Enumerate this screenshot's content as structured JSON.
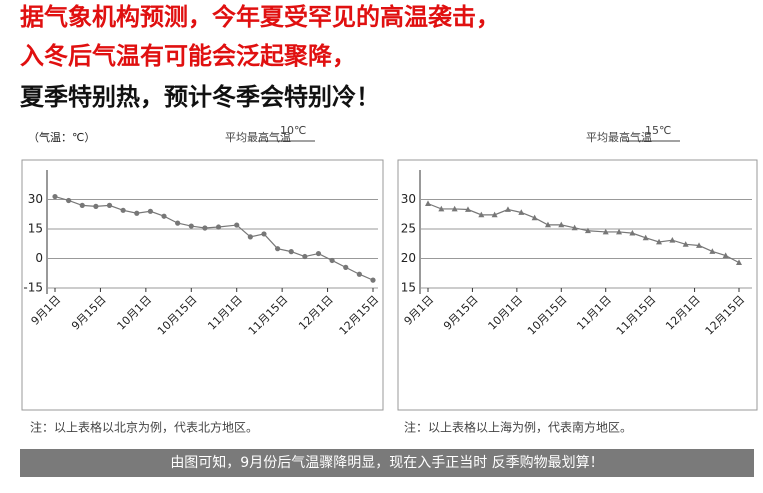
{
  "headline": [
    "据气象机构预测，今年夏受罕见的高温袭击，",
    "入冬后气温有可能会泛起聚降，",
    "夏季特别热，预计冬季会特别冷！"
  ],
  "unit_label": "（气温：℃）",
  "banner": "由图可知，9月份后气温骤降明显，现在入手正当时 反季购物最划算！",
  "chart_data": [
    {
      "type": "line",
      "marker": "circle",
      "avg_label": "平均最高气温",
      "avg_value": "10℃",
      "note": "注：以上表格以北京为例，代表北方地区。",
      "x": [
        0,
        0.3,
        0.6,
        0.9,
        1.2,
        1.5,
        1.8,
        2.1,
        2.4,
        2.7,
        3.0,
        3.3,
        3.6,
        4.0,
        4.3,
        4.6,
        4.9,
        5.2,
        5.5,
        5.8,
        6.1,
        6.4,
        6.7,
        7.0
      ],
      "series": [
        {
          "color": "#777777",
          "values": [
            31.5,
            29.5,
            27,
            26.5,
            27,
            24.5,
            23,
            24,
            21.5,
            18,
            16.5,
            15.5,
            16,
            17,
            11,
            12.5,
            5,
            3.5,
            1,
            2.5,
            -1,
            -4.5,
            -8,
            -11
          ]
        }
      ],
      "xlim": [
        0,
        7
      ],
      "xticks": [
        {
          "value": 0,
          "label": "9月1日"
        },
        {
          "value": 1,
          "label": "9月15日"
        },
        {
          "value": 2,
          "label": "10月1日"
        },
        {
          "value": 3,
          "label": "10月15日"
        },
        {
          "value": 4,
          "label": "11月1日"
        },
        {
          "value": 5,
          "label": "11月15日"
        },
        {
          "value": 6,
          "label": "12月1日"
        },
        {
          "value": 7,
          "label": "12月15日"
        }
      ],
      "ylim": [
        -15,
        45
      ],
      "yticks": [
        30,
        15,
        0,
        -15
      ],
      "grid": true
    },
    {
      "type": "line",
      "marker": "triangle",
      "avg_label": "平均最高气温",
      "avg_value": "15℃",
      "note": "注：以上表格以上海为例，代表南方地区。",
      "x": [
        0,
        0.3,
        0.6,
        0.9,
        1.2,
        1.5,
        1.8,
        2.1,
        2.4,
        2.7,
        3.0,
        3.3,
        3.6,
        4.0,
        4.3,
        4.6,
        4.9,
        5.2,
        5.5,
        5.8,
        6.1,
        6.4,
        6.7,
        7.0
      ],
      "series": [
        {
          "color": "#777777",
          "values": [
            29.3,
            28.4,
            28.4,
            28.3,
            27.4,
            27.4,
            28.3,
            27.8,
            26.9,
            25.7,
            25.7,
            25.2,
            24.7,
            24.5,
            24.5,
            24.3,
            23.5,
            22.8,
            23.1,
            22.4,
            22.2,
            21.2,
            20.5,
            19.3
          ]
        }
      ],
      "xlim": [
        0,
        7
      ],
      "xticks": [
        {
          "value": 0,
          "label": "9月1日"
        },
        {
          "value": 1,
          "label": "9月15日"
        },
        {
          "value": 2,
          "label": "10月1日"
        },
        {
          "value": 3,
          "label": "10月15日"
        },
        {
          "value": 4,
          "label": "11月1日"
        },
        {
          "value": 5,
          "label": "11月15日"
        },
        {
          "value": 6,
          "label": "12月1日"
        },
        {
          "value": 7,
          "label": "12月15日"
        }
      ],
      "ylim": [
        15,
        35
      ],
      "yticks": [
        30,
        25,
        20,
        15
      ],
      "grid": true
    }
  ]
}
